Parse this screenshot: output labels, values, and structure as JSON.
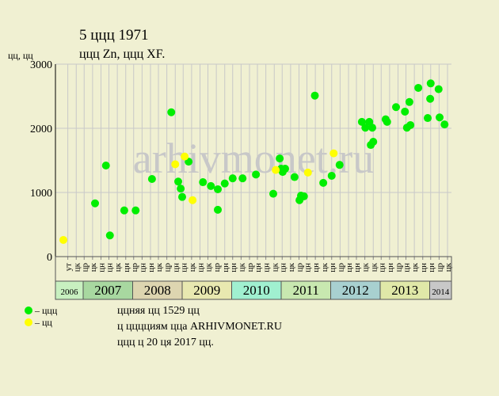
{
  "chart_data": {
    "type": "scatter",
    "title": "5 ццц 1971",
    "subtitle": "ццц Zn, ццц XF.",
    "y_label": "цц, цц",
    "watermark": "arhivmonet.ru",
    "xlim": [
      2006.44,
      2014.44
    ],
    "ylim": [
      0,
      3000
    ],
    "yticks": [
      0,
      1000,
      2000,
      3000
    ],
    "grid": true,
    "xticks": [
      {
        "value": 2006.69,
        "label": "ут"
      },
      {
        "value": 2006.86,
        "label": "цк"
      },
      {
        "value": 2007.02,
        "label": "цр"
      },
      {
        "value": 2007.19,
        "label": "цк"
      },
      {
        "value": 2007.36,
        "label": "цн"
      },
      {
        "value": 2007.52,
        "label": "цн"
      },
      {
        "value": 2007.69,
        "label": "цк"
      },
      {
        "value": 2007.86,
        "label": "цн"
      },
      {
        "value": 2008.02,
        "label": "цр"
      },
      {
        "value": 2008.19,
        "label": "цн"
      },
      {
        "value": 2008.36,
        "label": "цн"
      },
      {
        "value": 2008.52,
        "label": "цк"
      },
      {
        "value": 2008.69,
        "label": "цр"
      },
      {
        "value": 2008.86,
        "label": "цн"
      },
      {
        "value": 2009.02,
        "label": "цн"
      },
      {
        "value": 2009.19,
        "label": "цк"
      },
      {
        "value": 2009.36,
        "label": "цн"
      },
      {
        "value": 2009.52,
        "label": "цк"
      },
      {
        "value": 2009.69,
        "label": "цр"
      },
      {
        "value": 2009.86,
        "label": "цн"
      },
      {
        "value": 2010.02,
        "label": "цн"
      },
      {
        "value": 2010.19,
        "label": "цк"
      },
      {
        "value": 2010.36,
        "label": "цр"
      },
      {
        "value": 2010.52,
        "label": "цн"
      },
      {
        "value": 2010.69,
        "label": "цн"
      },
      {
        "value": 2010.86,
        "label": "цк"
      },
      {
        "value": 2011.02,
        "label": "цн"
      },
      {
        "value": 2011.19,
        "label": "цк"
      },
      {
        "value": 2011.36,
        "label": "цр"
      },
      {
        "value": 2011.52,
        "label": "цн"
      },
      {
        "value": 2011.69,
        "label": "цн"
      },
      {
        "value": 2011.86,
        "label": "цк"
      },
      {
        "value": 2012.02,
        "label": "цн"
      },
      {
        "value": 2012.19,
        "label": "цр"
      },
      {
        "value": 2012.36,
        "label": "цн"
      },
      {
        "value": 2012.52,
        "label": "цн"
      },
      {
        "value": 2012.69,
        "label": "цк"
      },
      {
        "value": 2012.86,
        "label": "цк"
      },
      {
        "value": 2013.02,
        "label": "цн"
      },
      {
        "value": 2013.19,
        "label": "цн"
      },
      {
        "value": 2013.36,
        "label": "цр"
      },
      {
        "value": 2013.52,
        "label": "цн"
      },
      {
        "value": 2013.69,
        "label": "цк"
      },
      {
        "value": 2013.86,
        "label": "цн"
      },
      {
        "value": 2014.02,
        "label": "цн"
      },
      {
        "value": 2014.19,
        "label": "цр"
      },
      {
        "value": 2014.36,
        "label": "цк"
      }
    ],
    "years": [
      {
        "value": 2006,
        "label": "2006",
        "color": "#c8f0c0"
      },
      {
        "value": 2007,
        "label": "2007",
        "color": "#a8d8a0"
      },
      {
        "value": 2008,
        "label": "2008",
        "color": "#ddd5b0"
      },
      {
        "value": 2009,
        "label": "2009",
        "color": "#e8e8b0"
      },
      {
        "value": 2010,
        "label": "2010",
        "color": "#a0f0d0"
      },
      {
        "value": 2011,
        "label": "2011",
        "color": "#c8e8b0"
      },
      {
        "value": 2012,
        "label": "2012",
        "color": "#a8d0d0"
      },
      {
        "value": 2013,
        "label": "2013",
        "color": "#e0e8a8"
      },
      {
        "value": 2014,
        "label": "2014",
        "color": "#c8c8c8"
      }
    ],
    "series": [
      {
        "name": "– ццц",
        "color": "#00ee00",
        "x": [
          2007.24,
          2007.46,
          2007.54,
          2007.83,
          2008.06,
          2008.39,
          2008.78,
          2008.92,
          2008.97,
          2009.0,
          2009.13,
          2009.42,
          2009.58,
          2009.72,
          2009.72,
          2009.86,
          2010.02,
          2010.22,
          2010.49,
          2010.84,
          2010.97,
          2011.0,
          2011.03,
          2011.08,
          2011.27,
          2011.37,
          2011.4,
          2011.46,
          2011.68,
          2011.85,
          2012.02,
          2012.18,
          2012.63,
          2012.7,
          2012.78,
          2012.81,
          2012.84,
          2012.86,
          2013.11,
          2013.14,
          2013.32,
          2013.5,
          2013.54,
          2013.59,
          2013.61,
          2013.77,
          2013.96,
          2014.01,
          2014.02,
          2014.18,
          2014.2,
          2014.3
        ],
        "values": [
          830,
          1420,
          330,
          720,
          720,
          1210,
          2250,
          1170,
          1060,
          930,
          1480,
          1160,
          1100,
          1050,
          730,
          1140,
          1220,
          1220,
          1280,
          980,
          1530,
          1370,
          1320,
          1370,
          1240,
          880,
          950,
          940,
          2510,
          1150,
          1260,
          1430,
          2100,
          2010,
          2100,
          1740,
          2010,
          1790,
          2140,
          2100,
          2330,
          2260,
          2010,
          2410,
          2050,
          2630,
          2160,
          2460,
          2700,
          2610,
          2170,
          2060
        ]
      },
      {
        "name": "– цц",
        "color": "#ffff00",
        "x": [
          2006.6,
          2008.86,
          2009.05,
          2009.21,
          2010.89,
          2011.54,
          2012.06
        ],
        "values": [
          260,
          1440,
          1560,
          880,
          1350,
          1310,
          1610
        ]
      }
    ],
    "notes": [
      "ццняя цц 1529 цц",
      "ц цццциям цца ARHIVMONET.RU",
      "ццц ц 20 ця 2017 цц."
    ]
  }
}
